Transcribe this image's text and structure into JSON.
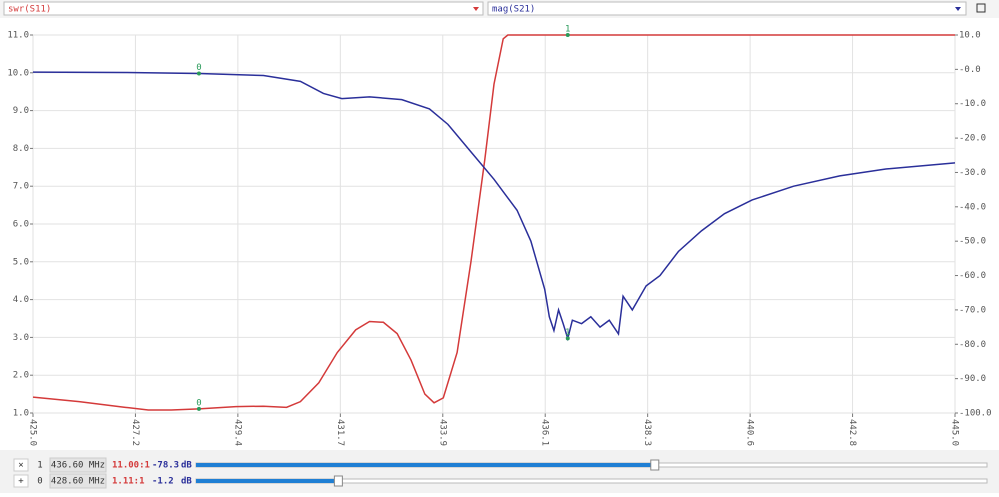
{
  "chart_data": {
    "type": "line",
    "xlim": [
      425,
      445
    ],
    "xticks": [
      {
        "value": 425,
        "label": "425.0"
      },
      {
        "value": 427.222,
        "label": "427.2"
      },
      {
        "value": 429.444,
        "label": "429.4"
      },
      {
        "value": 431.667,
        "label": "431.7"
      },
      {
        "value": 433.889,
        "label": "433.9"
      },
      {
        "value": 436.111,
        "label": "436.1"
      },
      {
        "value": 438.333,
        "label": "438.3"
      },
      {
        "value": 440.556,
        "label": "440.6"
      },
      {
        "value": 442.778,
        "label": "442.8"
      },
      {
        "value": 445,
        "label": "445.0"
      }
    ],
    "ylim": [
      1,
      11
    ],
    "yticks": [
      {
        "value": 1,
        "label": "1.0"
      },
      {
        "value": 2,
        "label": "2.0"
      },
      {
        "value": 3,
        "label": "3.0"
      },
      {
        "value": 4,
        "label": "4.0"
      },
      {
        "value": 5,
        "label": "5.0"
      },
      {
        "value": 6,
        "label": "6.0"
      },
      {
        "value": 7,
        "label": "7.0"
      },
      {
        "value": 8,
        "label": "8.0"
      },
      {
        "value": 9,
        "label": "9.0"
      },
      {
        "value": 10,
        "label": "10.0"
      },
      {
        "value": 11,
        "label": "11.0"
      }
    ],
    "y2lim": [
      -100,
      10
    ],
    "y2ticks": [
      {
        "value": 10,
        "label": "10.0"
      },
      {
        "value": 0,
        "label": "-0.0"
      },
      {
        "value": -10,
        "label": "-10.0"
      },
      {
        "value": -20,
        "label": "-20.0"
      },
      {
        "value": -30,
        "label": "-30.0"
      },
      {
        "value": -40,
        "label": "-40.0"
      },
      {
        "value": -50,
        "label": "-50.0"
      },
      {
        "value": -60,
        "label": "-60.0"
      },
      {
        "value": -70,
        "label": "-70.0"
      },
      {
        "value": -80,
        "label": "-80.0"
      },
      {
        "value": -90,
        "label": "-90.0"
      },
      {
        "value": -100,
        "label": "-100.0"
      }
    ],
    "grid": true,
    "series": [
      {
        "name": "swr(S11)",
        "color": "#d43a3a",
        "x": [
          425.0,
          426.0,
          427.0,
          427.5,
          428.0,
          428.6,
          429.4,
          430.0,
          430.5,
          430.8,
          431.2,
          431.6,
          432.0,
          432.3,
          432.6,
          432.9,
          433.2,
          433.5,
          433.7,
          433.9,
          434.2,
          434.5,
          434.8,
          435.0,
          435.2,
          435.3,
          445.0
        ],
        "values": [
          1.42,
          1.3,
          1.15,
          1.08,
          1.08,
          1.11,
          1.17,
          1.18,
          1.15,
          1.3,
          1.8,
          2.6,
          3.2,
          3.42,
          3.4,
          3.1,
          2.4,
          1.5,
          1.27,
          1.4,
          2.6,
          5.0,
          7.7,
          9.7,
          10.9,
          11.0,
          11.0
        ]
      },
      {
        "name": "mag(S21)",
        "color": "#2a2f9a",
        "axis": "y2",
        "x": [
          425.0,
          427.0,
          428.6,
          430.0,
          430.8,
          431.3,
          431.7,
          432.3,
          433.0,
          433.6,
          434.0,
          434.5,
          435.0,
          435.5,
          435.8,
          436.1,
          436.2,
          436.3,
          436.4,
          436.5,
          436.6,
          436.7,
          436.9,
          437.1,
          437.3,
          437.5,
          437.7,
          437.8,
          438.0,
          438.3,
          438.6,
          439.0,
          439.5,
          440.0,
          440.6,
          441.5,
          442.5,
          443.5,
          445.0
        ],
        "values": [
          -0.8,
          -0.9,
          -1.2,
          -1.8,
          -3.5,
          -7,
          -8.5,
          -8.0,
          -8.8,
          -11.5,
          -16,
          -24,
          -32,
          -41,
          -50,
          -64,
          -72,
          -76,
          -70,
          -74,
          -78.3,
          -73,
          -74,
          -72,
          -75,
          -73,
          -77,
          -66,
          -70,
          -63,
          -60,
          -53,
          -47,
          -42,
          -38,
          -34,
          -31,
          -29,
          -27.2
        ]
      }
    ],
    "markers": [
      {
        "button": "×",
        "label": "1",
        "x": 436.6,
        "freq": "436.60 MHz",
        "swr": 11.0,
        "swr_label": "11.00:1",
        "mag": -78.3,
        "unit": "dB"
      },
      {
        "button": "+",
        "label": "0",
        "x": 428.6,
        "freq": "428.60 MHz",
        "swr": 1.11,
        "swr_label": "1.11:1",
        "mag": -1.2,
        "unit": "dB"
      }
    ]
  }
}
